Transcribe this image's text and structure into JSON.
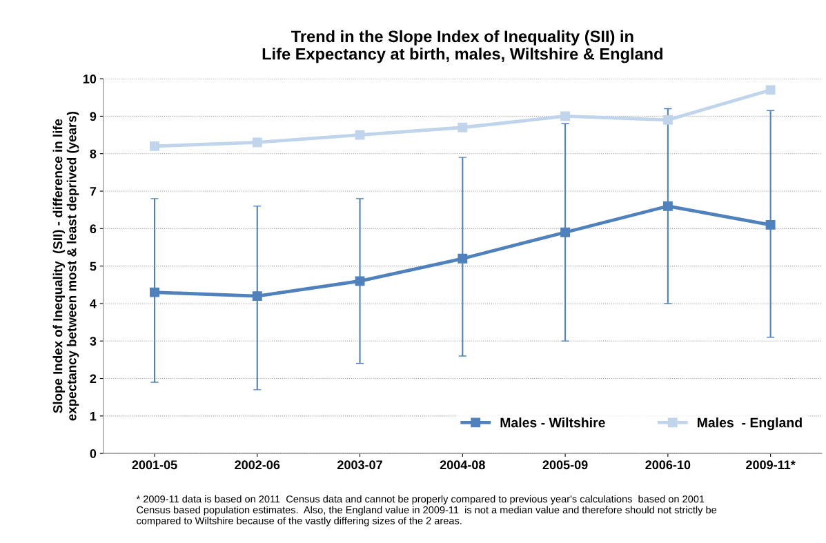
{
  "chart_data": {
    "type": "line",
    "title": "Trend in the Slope Index of Inequality (SII) in\nLife Expectancy at birth, males, Wiltshire & England",
    "ylabel": "Slope Index of Inequality  (SII) - difference in life\nexpectancy between most & least deprived (years)",
    "categories": [
      "2001-05",
      "2002-06",
      "2003-07",
      "2004-08",
      "2005-09",
      "2006-10",
      "2009-11*"
    ],
    "series": [
      {
        "name": "Males - Wiltshire",
        "color": "#4f81bd",
        "values": [
          4.3,
          4.2,
          4.6,
          5.2,
          5.9,
          6.6,
          6.1
        ],
        "errors": [
          [
            1.9,
            6.8
          ],
          [
            1.7,
            6.6
          ],
          [
            2.4,
            6.8
          ],
          [
            2.6,
            7.9
          ],
          [
            3.0,
            8.8
          ],
          [
            4.0,
            9.2
          ],
          [
            3.1,
            9.15
          ]
        ]
      },
      {
        "name": "Males  - England",
        "color": "#c0d4ec",
        "values": [
          8.2,
          8.3,
          8.5,
          8.7,
          9.0,
          8.9,
          9.7
        ]
      }
    ],
    "ylim": [
      0,
      10
    ],
    "yticks": [
      0,
      1,
      2,
      3,
      4,
      5,
      6,
      7,
      8,
      9,
      10
    ],
    "grid": "y",
    "legend": "bottom right",
    "marker": "square",
    "line_style": "solid",
    "annotations": [
      "* 2009-11 data is based on 2011  Census data and cannot be properly compared to previous year's calculations  based on 2001\nCensus based population estimates.  Also, the England value in 2009-11  is not a median value and therefore should not strictly be\ncompared to Wiltshire because of the vastly differing sizes of the 2 areas."
    ]
  }
}
